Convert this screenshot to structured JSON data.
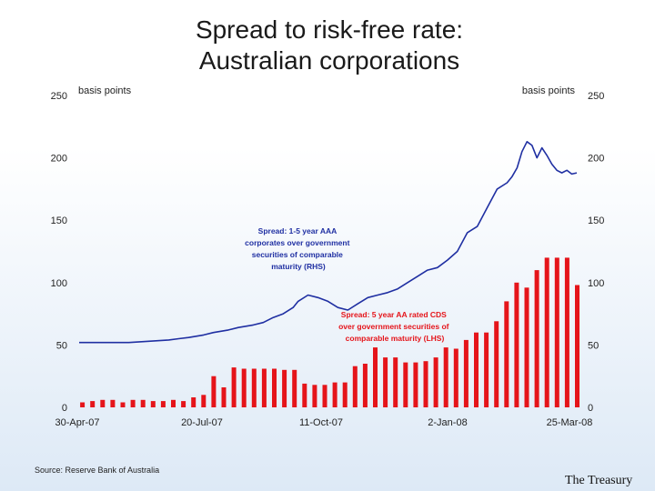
{
  "title_line1": "Spread to risk-free rate:",
  "title_line2": "Australian corporations",
  "source": "Source: Reserve Bank of Australia",
  "footer": "The Treasury",
  "chart_data": {
    "type": "bar+line",
    "left_axis_label": "basis points",
    "right_axis_label": "basis points",
    "ylim": [
      0,
      250
    ],
    "left_ticks": [
      0,
      50,
      100,
      150,
      200,
      250
    ],
    "right_ticks": [
      0,
      50,
      100,
      150,
      200,
      250
    ],
    "x_ticks": [
      "30-Apr-07",
      "20-Jul-07",
      "11-Oct-07",
      "2-Jan-08",
      "25-Mar-08"
    ],
    "series": [
      {
        "name": "Spread: 5 year AA rated CDS over government securities of comparable maturity (LHS)",
        "type": "bar",
        "axis": "left",
        "color": "#e5141a",
        "values": [
          4,
          5,
          6,
          6,
          4,
          6,
          6,
          5,
          5,
          6,
          5,
          8,
          10,
          25,
          16,
          32,
          31,
          31,
          31,
          31,
          30,
          30,
          19,
          18,
          18,
          20,
          20,
          33,
          35,
          48,
          40,
          40,
          36,
          36,
          37,
          40,
          48,
          47,
          54,
          60,
          60,
          69,
          85,
          100,
          96,
          110,
          120,
          120,
          120,
          98
        ]
      },
      {
        "name": "Spread: 1-5 year AAA corporates over government securities of comparable maturity (RHS)",
        "type": "line",
        "axis": "right",
        "color": "#1f2fa2",
        "x": [
          0,
          0.05,
          0.1,
          0.14,
          0.18,
          0.2,
          0.22,
          0.25,
          0.27,
          0.3,
          0.32,
          0.35,
          0.37,
          0.39,
          0.41,
          0.43,
          0.44,
          0.46,
          0.48,
          0.5,
          0.52,
          0.54,
          0.56,
          0.58,
          0.6,
          0.62,
          0.64,
          0.66,
          0.68,
          0.7,
          0.72,
          0.74,
          0.76,
          0.78,
          0.8,
          0.82,
          0.84,
          0.86,
          0.87,
          0.88,
          0.89,
          0.9,
          0.91,
          0.92,
          0.93,
          0.94,
          0.95,
          0.96,
          0.97,
          0.98,
          0.99,
          1.0
        ],
        "values": [
          52,
          52,
          52,
          53,
          54,
          55,
          56,
          58,
          60,
          62,
          64,
          66,
          68,
          72,
          75,
          80,
          85,
          90,
          88,
          85,
          80,
          78,
          83,
          88,
          90,
          92,
          95,
          100,
          105,
          110,
          112,
          118,
          125,
          140,
          145,
          160,
          175,
          180,
          185,
          192,
          205,
          213,
          210,
          200,
          208,
          202,
          195,
          190,
          188,
          190,
          187,
          188
        ]
      }
    ],
    "annotations": [
      "Spread: 1-5 year AAA corporates over government securities of comparable maturity (RHS)",
      "Spread: 5 year AA rated CDS over government securities of comparable maturity (LHS)"
    ]
  }
}
